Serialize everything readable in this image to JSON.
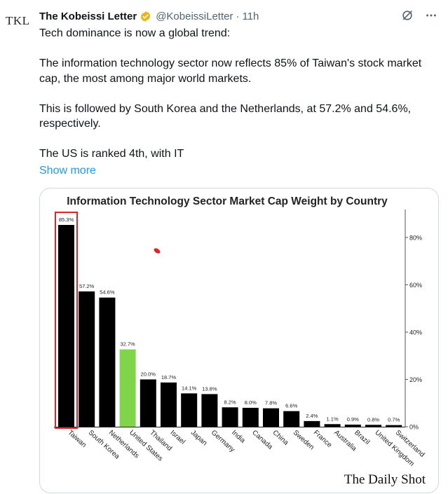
{
  "tweet": {
    "avatar_text": "TKL",
    "author_name": "The Kobeissi Letter",
    "handle": "@KobeissiLetter",
    "separator": "·",
    "time": "11h",
    "paragraphs": [
      "Tech dominance is now a global trend:",
      "The information technology sector now reflects 85% of Taiwan's stock market cap, the most among major world markets.",
      "This is followed by South Korea and the Netherlands, at 57.2% and 54.6%, respectively.",
      "The US is ranked 4th, with IT"
    ],
    "show_more": "Show more"
  },
  "colors": {
    "verified": "#e8b51a",
    "link": "#1d9bf0",
    "bar_default": "#000000",
    "bar_highlight": "#7fd44a",
    "highlight_box": "#d9262b"
  },
  "chart_data": {
    "type": "bar",
    "title": "Information Technology Sector Market Cap Weight by Country",
    "categories": [
      "Taiwan",
      "South Korea",
      "Netherlands",
      "United States",
      "Thailand",
      "Israel",
      "Japan",
      "Germany",
      "India",
      "Canada",
      "China",
      "Sweden",
      "France",
      "Australia",
      "Brazil",
      "United Kingdom",
      "Switzerland"
    ],
    "values": [
      85.3,
      57.2,
      54.6,
      32.7,
      20.0,
      18.7,
      14.1,
      13.8,
      8.2,
      8.0,
      7.8,
      6.6,
      2.4,
      1.1,
      0.9,
      0.8,
      0.7
    ],
    "value_labels": [
      "85.3%",
      "57.2%",
      "54.6%",
      "32.7%",
      "20.0%",
      "18.7%",
      "14.1%",
      "13.8%",
      "8.2%",
      "8.0%",
      "7.8%",
      "6.6%",
      "2.4%",
      "1.1%",
      "0.9%",
      "0.8%",
      "0.7%"
    ],
    "highlight_index": 3,
    "boxed_index": 0,
    "yticks": [
      0,
      20,
      40,
      60,
      80
    ],
    "ytick_labels": [
      "0%",
      "20%",
      "40%",
      "60%",
      "80%"
    ],
    "ylim": [
      0,
      90
    ],
    "y_axis_side": "right",
    "grid": false,
    "source_logo": "The Daily Shot"
  }
}
